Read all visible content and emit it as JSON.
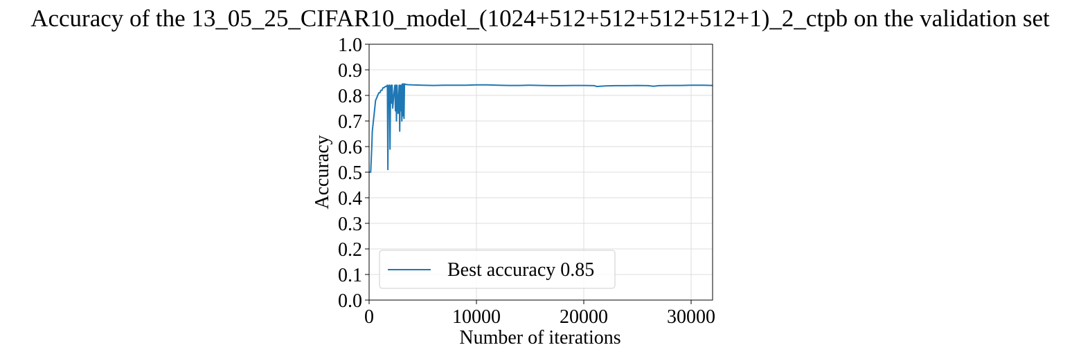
{
  "chart_data": {
    "type": "line",
    "title": "Accuracy of the 13_05_25_CIFAR10_model_(1024+512+512+512+512+1)_2_ctpb on the validation set",
    "xlabel": "Number of iterations",
    "ylabel": "Accuracy",
    "xlim": [
      0,
      32000
    ],
    "ylim": [
      0.0,
      1.0
    ],
    "x_ticks": [
      0,
      10000,
      20000,
      30000
    ],
    "x_tick_labels": [
      "0",
      "10000",
      "20000",
      "30000"
    ],
    "y_ticks": [
      0.0,
      0.1,
      0.2,
      0.3,
      0.4,
      0.5,
      0.6,
      0.7,
      0.8,
      0.9,
      1.0
    ],
    "y_tick_labels": [
      "0.0",
      "0.1",
      "0.2",
      "0.3",
      "0.4",
      "0.5",
      "0.6",
      "0.7",
      "0.8",
      "0.9",
      "1.0"
    ],
    "grid": true,
    "legend_position": "lower-left",
    "series": [
      {
        "name": "Best accuracy 0.85",
        "color": "#1f77b4",
        "x": [
          0,
          150,
          250,
          300,
          400,
          500,
          600,
          700,
          800,
          900,
          1000,
          1100,
          1200,
          1300,
          1400,
          1500,
          1600,
          1700,
          1750,
          1800,
          1850,
          1900,
          1950,
          2000,
          2050,
          2100,
          2150,
          2200,
          2300,
          2400,
          2450,
          2500,
          2550,
          2600,
          2700,
          2800,
          2850,
          2900,
          2950,
          3000,
          3050,
          3100,
          3150,
          3200,
          3250,
          3300,
          3400,
          3600,
          4000,
          5000,
          6000,
          7000,
          8000,
          9000,
          10000,
          11000,
          12000,
          13000,
          14000,
          15000,
          16000,
          17000,
          18000,
          19000,
          20000,
          21000,
          21200,
          22000,
          23000,
          24000,
          25000,
          26000,
          26500,
          27000,
          28000,
          29000,
          30000,
          31000,
          32000
        ],
        "y": [
          0.5,
          0.5,
          0.6,
          0.66,
          0.7,
          0.74,
          0.78,
          0.79,
          0.8,
          0.81,
          0.81,
          0.82,
          0.82,
          0.83,
          0.83,
          0.835,
          0.835,
          0.84,
          0.51,
          0.83,
          0.84,
          0.84,
          0.59,
          0.83,
          0.84,
          0.77,
          0.84,
          0.75,
          0.8,
          0.84,
          0.74,
          0.84,
          0.7,
          0.84,
          0.73,
          0.84,
          0.66,
          0.84,
          0.74,
          0.84,
          0.7,
          0.845,
          0.72,
          0.845,
          0.71,
          0.845,
          0.843,
          0.842,
          0.841,
          0.84,
          0.839,
          0.84,
          0.84,
          0.84,
          0.841,
          0.841,
          0.84,
          0.839,
          0.839,
          0.84,
          0.839,
          0.838,
          0.838,
          0.839,
          0.839,
          0.838,
          0.835,
          0.837,
          0.838,
          0.838,
          0.839,
          0.838,
          0.836,
          0.838,
          0.839,
          0.839,
          0.84,
          0.84,
          0.839
        ]
      }
    ]
  }
}
